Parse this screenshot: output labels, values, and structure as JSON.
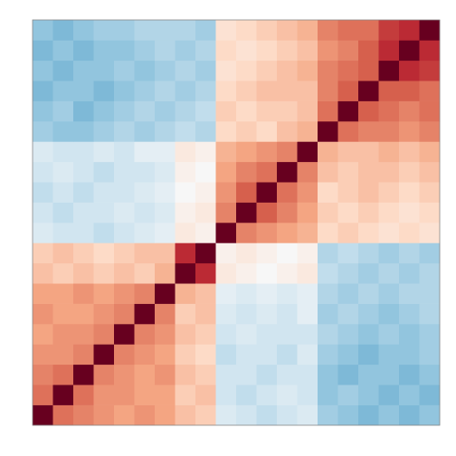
{
  "chart_data": {
    "type": "heatmap",
    "zlim": [
      -1,
      1
    ],
    "colormap": [
      "#053061",
      "#2166ac",
      "#4393c3",
      "#92c5de",
      "#d1e5f0",
      "#f7f7f7",
      "#fddbc7",
      "#f4a582",
      "#d6604d",
      "#b2182b",
      "#67001f"
    ],
    "values": [
      [
        1,
        0.55,
        0.5,
        0.45,
        0.4,
        0.45,
        0.4,
        0.3,
        0.25,
        -0.15,
        -0.2,
        -0.25,
        -0.2,
        -0.15,
        -0.35,
        -0.4,
        -0.45,
        -0.4,
        -0.45,
        -0.4
      ],
      [
        0.55,
        1,
        0.55,
        0.45,
        0.45,
        0.4,
        0.4,
        0.25,
        0.3,
        -0.2,
        -0.25,
        -0.2,
        -0.15,
        -0.2,
        -0.4,
        -0.35,
        -0.4,
        -0.45,
        -0.4,
        -0.45
      ],
      [
        0.5,
        0.55,
        1,
        0.5,
        0.45,
        0.4,
        0.45,
        0.3,
        0.25,
        -0.2,
        -0.2,
        -0.25,
        -0.2,
        -0.2,
        -0.4,
        -0.45,
        -0.4,
        -0.4,
        -0.45,
        -0.4
      ],
      [
        0.45,
        0.45,
        0.5,
        1,
        0.5,
        0.45,
        0.4,
        0.25,
        0.2,
        -0.25,
        -0.2,
        -0.2,
        -0.25,
        -0.15,
        -0.35,
        -0.4,
        -0.45,
        -0.4,
        -0.4,
        -0.35
      ],
      [
        0.4,
        0.45,
        0.45,
        0.5,
        1,
        0.5,
        0.45,
        0.3,
        0.25,
        -0.2,
        -0.15,
        -0.2,
        -0.2,
        -0.2,
        -0.3,
        -0.35,
        -0.4,
        -0.35,
        -0.4,
        -0.35
      ],
      [
        0.45,
        0.4,
        0.4,
        0.45,
        0.5,
        1,
        0.5,
        0.25,
        0.3,
        -0.15,
        -0.2,
        -0.15,
        -0.2,
        -0.1,
        -0.35,
        -0.3,
        -0.35,
        -0.4,
        -0.35,
        -0.3
      ],
      [
        0.4,
        0.4,
        0.45,
        0.4,
        0.45,
        0.5,
        1,
        0.35,
        0.3,
        -0.1,
        -0.15,
        -0.1,
        -0.15,
        -0.1,
        -0.3,
        -0.35,
        -0.3,
        -0.35,
        -0.3,
        -0.3
      ],
      [
        0.3,
        0.25,
        0.3,
        0.25,
        0.3,
        0.25,
        0.35,
        1,
        0.75,
        0.1,
        0.05,
        0,
        0.05,
        0.1,
        -0.25,
        -0.3,
        -0.35,
        -0.3,
        -0.35,
        -0.3
      ],
      [
        0.25,
        0.3,
        0.25,
        0.2,
        0.25,
        0.3,
        0.3,
        0.75,
        1,
        0.05,
        0.1,
        0.05,
        0,
        0.05,
        -0.3,
        -0.25,
        -0.3,
        -0.35,
        -0.3,
        -0.35
      ],
      [
        -0.15,
        -0.2,
        -0.2,
        -0.25,
        -0.2,
        -0.15,
        -0.1,
        0.1,
        0.05,
        1,
        0.5,
        0.45,
        0.4,
        0.35,
        0.2,
        0.25,
        0.2,
        0.15,
        0.2,
        0.15
      ],
      [
        -0.2,
        -0.25,
        -0.2,
        -0.2,
        -0.15,
        -0.2,
        -0.15,
        0.05,
        0.1,
        0.5,
        1,
        0.6,
        0.5,
        0.4,
        0.25,
        0.2,
        0.25,
        0.2,
        0.15,
        0.2
      ],
      [
        -0.25,
        -0.2,
        -0.25,
        -0.2,
        -0.2,
        -0.15,
        -0.1,
        0,
        0.05,
        0.45,
        0.6,
        1,
        0.55,
        0.45,
        0.2,
        0.25,
        0.3,
        0.25,
        0.2,
        0.25
      ],
      [
        -0.2,
        -0.15,
        -0.2,
        -0.25,
        -0.2,
        -0.2,
        -0.15,
        0.05,
        0,
        0.4,
        0.5,
        0.55,
        1,
        0.5,
        0.3,
        0.25,
        0.3,
        0.3,
        0.25,
        0.3
      ],
      [
        -0.15,
        -0.2,
        -0.2,
        -0.15,
        -0.2,
        -0.1,
        -0.1,
        0.1,
        0.05,
        0.35,
        0.4,
        0.45,
        0.5,
        1,
        0.35,
        0.3,
        0.3,
        0.35,
        0.3,
        0.35
      ],
      [
        -0.35,
        -0.4,
        -0.4,
        -0.35,
        -0.3,
        -0.35,
        -0.3,
        -0.25,
        -0.3,
        0.2,
        0.25,
        0.2,
        0.3,
        0.35,
        1,
        0.55,
        0.5,
        0.5,
        0.45,
        0.5
      ],
      [
        -0.4,
        -0.35,
        -0.45,
        -0.4,
        -0.35,
        -0.3,
        -0.35,
        -0.3,
        -0.25,
        0.25,
        0.2,
        0.25,
        0.25,
        0.3,
        0.55,
        1,
        0.6,
        0.55,
        0.5,
        0.55
      ],
      [
        -0.45,
        -0.4,
        -0.4,
        -0.45,
        -0.4,
        -0.35,
        -0.3,
        -0.35,
        -0.3,
        0.2,
        0.25,
        0.3,
        0.3,
        0.3,
        0.5,
        0.6,
        1,
        0.6,
        0.6,
        0.55
      ],
      [
        -0.4,
        -0.45,
        -0.4,
        -0.4,
        -0.35,
        -0.4,
        -0.35,
        -0.3,
        -0.35,
        0.15,
        0.2,
        0.25,
        0.3,
        0.35,
        0.5,
        0.55,
        0.6,
        1,
        0.75,
        0.7
      ],
      [
        -0.45,
        -0.4,
        -0.45,
        -0.4,
        -0.4,
        -0.35,
        -0.3,
        -0.35,
        -0.3,
        0.2,
        0.15,
        0.2,
        0.25,
        0.3,
        0.45,
        0.5,
        0.6,
        0.75,
        1,
        0.75
      ],
      [
        -0.4,
        -0.45,
        -0.4,
        -0.35,
        -0.35,
        -0.3,
        -0.3,
        -0.3,
        -0.35,
        0.15,
        0.2,
        0.25,
        0.3,
        0.35,
        0.5,
        0.55,
        0.55,
        0.7,
        0.75,
        1
      ]
    ]
  }
}
